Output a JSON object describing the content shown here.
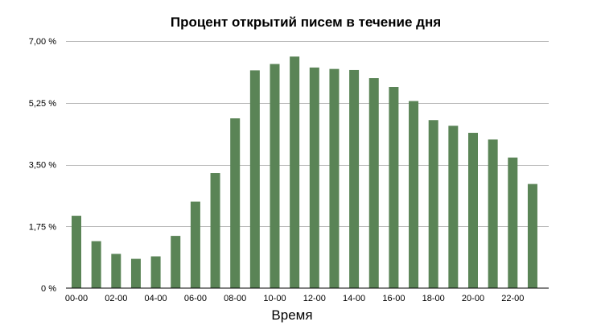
{
  "chart_data": {
    "type": "bar",
    "title": "Процент открытий писем в течение дня",
    "xlabel": "Время",
    "ylabel": "",
    "ylim": [
      0,
      7.0
    ],
    "y_ticks": [
      0,
      1.75,
      3.5,
      5.25,
      7.0
    ],
    "y_tick_labels": [
      "0 %",
      "1,75 %",
      "3,50 %",
      "5,25 %",
      "7,00 %"
    ],
    "grid": "horizontal",
    "legend": "none",
    "bar_color": "#5a8456",
    "categories": [
      "00-00",
      "01-00",
      "02-00",
      "03-00",
      "04-00",
      "05-00",
      "06-00",
      "07-00",
      "08-00",
      "09-00",
      "10-00",
      "11-00",
      "12-00",
      "13-00",
      "14-00",
      "15-00",
      "16-00",
      "17-00",
      "18-00",
      "19-00",
      "20-00",
      "21-00",
      "22-00",
      "23-00"
    ],
    "x_tick_labels": [
      "00-00",
      "",
      "02-00",
      "",
      "04-00",
      "",
      "06-00",
      "",
      "08-00",
      "",
      "10-00",
      "",
      "12-00",
      "",
      "14-00",
      "",
      "16-00",
      "",
      "18-00",
      "",
      "20-00",
      "",
      "22-00",
      ""
    ],
    "values": [
      2.05,
      1.33,
      0.97,
      0.83,
      0.9,
      1.48,
      2.45,
      3.26,
      4.81,
      6.17,
      6.35,
      6.56,
      6.25,
      6.21,
      6.18,
      5.95,
      5.7,
      5.3,
      4.76,
      4.6,
      4.4,
      4.21,
      3.7,
      2.95
    ]
  }
}
